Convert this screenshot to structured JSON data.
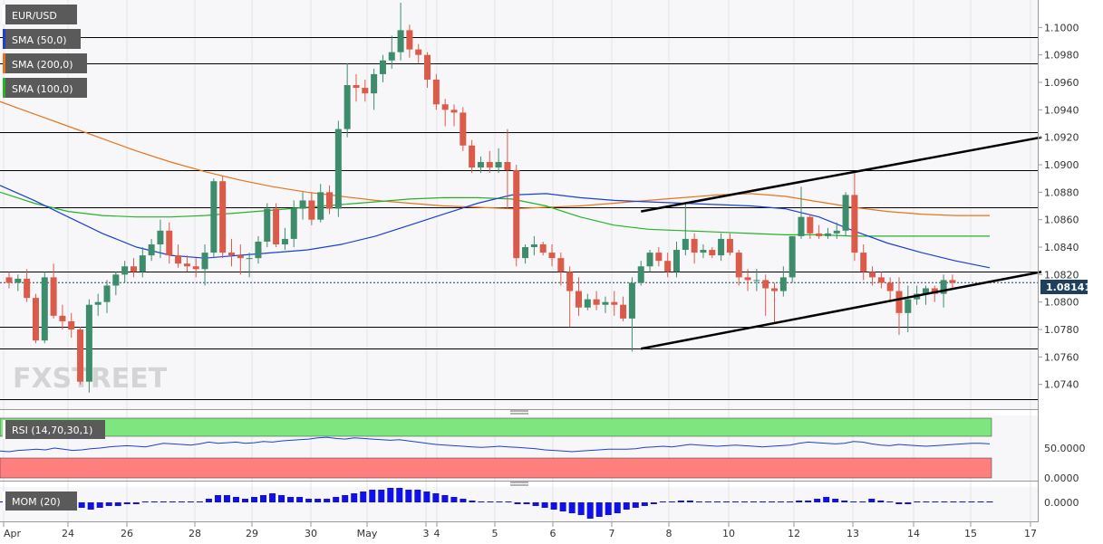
{
  "colors": {
    "up": "#3d8c6b",
    "down": "#dc5a4a",
    "sma50": "#1c3fd6",
    "sma200": "#e8741a",
    "sma100": "#27b327",
    "rsi_upper_band": "#7fe57f",
    "rsi_lower_band": "#ff7f7f",
    "rsi_line": "#1c3fd6",
    "mom_bar": "#1010e8",
    "trendline": "#000000",
    "price_tag_bg": "#1f3f5f"
  },
  "legend": {
    "symbol": "EUR/USD",
    "sma50": "SMA (50,0)",
    "sma200": "SMA (200,0)",
    "sma100": "SMA (100,0)"
  },
  "price_tag": "1.08141",
  "watermark": "FXSTREET",
  "rsi_label": "RSI (14,70,30,1)",
  "mom_label": "MOM (20)",
  "rsi_ticks": [
    "50.0000",
    "0.0000"
  ],
  "mom_ticks": [
    "0.0000"
  ],
  "chart_data": {
    "type": "candlestick",
    "ylim": [
      1.0722,
      1.102
    ],
    "y_ticks": [
      1.1,
      1.098,
      1.096,
      1.094,
      1.092,
      1.09,
      1.088,
      1.086,
      1.084,
      1.082,
      1.08,
      1.078,
      1.076,
      1.074
    ],
    "y_tick_labels": [
      "1.1000",
      "1.0980",
      "1.0960",
      "1.0940",
      "1.0920",
      "1.0900",
      "1.0880",
      "1.0860",
      "1.0840",
      "1.0820",
      "1.0800",
      "1.0780",
      "1.0760",
      "1.0740"
    ],
    "x_tick_labels": [
      "Apr",
      "24",
      "26",
      "28",
      "29",
      "30",
      "May",
      "3",
      "4",
      "5",
      "6",
      "7",
      "8",
      "10",
      "12",
      "13",
      "14",
      "15",
      "17"
    ],
    "horizontal_levels": [
      1.0993,
      1.0974,
      1.0924,
      1.0896,
      1.0869,
      1.0822,
      1.0782,
      1.0766,
      1.0729
    ],
    "last_price": 1.08141,
    "candles": [
      [
        1.0818,
        1.0822,
        1.081,
        1.0814
      ],
      [
        1.0814,
        1.082,
        1.0808,
        1.0817
      ],
      [
        1.0817,
        1.0824,
        1.08,
        1.0803
      ],
      [
        1.0803,
        1.0806,
        1.077,
        1.0772
      ],
      [
        1.0772,
        1.0822,
        1.077,
        1.0818
      ],
      [
        1.0818,
        1.0828,
        1.0788,
        1.079
      ],
      [
        1.079,
        1.0798,
        1.078,
        1.0786
      ],
      [
        1.0786,
        1.0792,
        1.0774,
        1.078
      ],
      [
        1.078,
        1.0782,
        1.074,
        1.0742
      ],
      [
        1.0742,
        1.0802,
        1.0734,
        1.0798
      ],
      [
        1.0798,
        1.0806,
        1.079,
        1.08
      ],
      [
        1.08,
        1.0816,
        1.0792,
        1.0812
      ],
      [
        1.0812,
        1.0822,
        1.0805,
        1.082
      ],
      [
        1.082,
        1.083,
        1.0814,
        1.0826
      ],
      [
        1.0826,
        1.0832,
        1.0818,
        1.0822
      ],
      [
        1.0822,
        1.084,
        1.0818,
        1.0834
      ],
      [
        1.0834,
        1.0846,
        1.083,
        1.0842
      ],
      [
        1.0842,
        1.086,
        1.0832,
        1.0852
      ],
      [
        1.0852,
        1.0858,
        1.0828,
        1.0834
      ],
      [
        1.0834,
        1.0842,
        1.0825,
        1.0828
      ],
      [
        1.0828,
        1.0834,
        1.0822,
        1.0826
      ],
      [
        1.0826,
        1.0832,
        1.0818,
        1.0824
      ],
      [
        1.0824,
        1.0842,
        1.0812,
        1.0836
      ],
      [
        1.0836,
        1.089,
        1.0832,
        1.0888
      ],
      [
        1.0888,
        1.0892,
        1.0832,
        1.0836
      ],
      [
        1.0836,
        1.0846,
        1.0826,
        1.0834
      ],
      [
        1.0834,
        1.0842,
        1.082,
        1.0832
      ],
      [
        1.0832,
        1.0836,
        1.0818,
        1.0832
      ],
      [
        1.0832,
        1.0848,
        1.0828,
        1.0844
      ],
      [
        1.0844,
        1.0872,
        1.084,
        1.0868
      ],
      [
        1.0868,
        1.0872,
        1.084,
        1.0842
      ],
      [
        1.0842,
        1.0854,
        1.0838,
        1.0846
      ],
      [
        1.0846,
        1.0874,
        1.084,
        1.0868
      ],
      [
        1.0868,
        1.088,
        1.086,
        1.0874
      ],
      [
        1.0874,
        1.088,
        1.0856,
        1.086
      ],
      [
        1.086,
        1.0886,
        1.0858,
        1.088
      ],
      [
        1.088,
        1.0885,
        1.0864,
        1.0868
      ],
      [
        1.0868,
        1.0932,
        1.0862,
        1.0926
      ],
      [
        1.0926,
        1.0974,
        1.092,
        1.0958
      ],
      [
        1.0958,
        1.0966,
        1.0946,
        1.0956
      ],
      [
        1.0956,
        1.0962,
        1.0946,
        1.0952
      ],
      [
        1.0952,
        1.097,
        1.094,
        1.0966
      ],
      [
        1.0966,
        1.098,
        1.096,
        1.0976
      ],
      [
        1.0976,
        1.0994,
        1.097,
        1.0982
      ],
      [
        1.0982,
        1.1018,
        1.0976,
        1.0998
      ],
      [
        1.0998,
        1.1002,
        1.0978,
        1.0984
      ],
      [
        1.0984,
        1.0988,
        1.0974,
        1.098
      ],
      [
        1.098,
        1.0982,
        1.0956,
        1.0962
      ],
      [
        1.0962,
        1.0966,
        1.094,
        1.0944
      ],
      [
        1.0944,
        1.0948,
        1.0928,
        1.094
      ],
      [
        1.094,
        1.0944,
        1.0928,
        1.0938
      ],
      [
        1.0938,
        1.0942,
        1.091,
        1.0914
      ],
      [
        1.0914,
        1.0918,
        1.0894,
        1.0898
      ],
      [
        1.0898,
        1.0906,
        1.0894,
        1.0902
      ],
      [
        1.0902,
        1.091,
        1.0894,
        1.0898
      ],
      [
        1.0898,
        1.0912,
        1.0894,
        1.0902
      ],
      [
        1.0902,
        1.0926,
        1.0868,
        1.0896
      ],
      [
        1.0896,
        1.09,
        1.0826,
        1.0832
      ],
      [
        1.0832,
        1.0842,
        1.0828,
        1.084
      ],
      [
        1.084,
        1.0848,
        1.0834,
        1.0842
      ],
      [
        1.0842,
        1.0844,
        1.0834,
        1.0836
      ],
      [
        1.0836,
        1.0842,
        1.0826,
        1.0832
      ],
      [
        1.0832,
        1.0836,
        1.0812,
        1.0822
      ],
      [
        1.0822,
        1.0826,
        1.0782,
        1.0808
      ],
      [
        1.0808,
        1.0818,
        1.079,
        1.0796
      ],
      [
        1.0796,
        1.0806,
        1.0794,
        1.0802
      ],
      [
        1.0802,
        1.0808,
        1.0794,
        1.0798
      ],
      [
        1.0798,
        1.0804,
        1.0792,
        1.08
      ],
      [
        1.08,
        1.0808,
        1.079,
        1.0798
      ],
      [
        1.0798,
        1.0804,
        1.0786,
        1.0788
      ],
      [
        1.0788,
        1.0818,
        1.0764,
        1.0814
      ],
      [
        1.0814,
        1.083,
        1.0812,
        1.0826
      ],
      [
        1.0826,
        1.0838,
        1.0822,
        1.0836
      ],
      [
        1.0836,
        1.084,
        1.0826,
        1.083
      ],
      [
        1.083,
        1.0836,
        1.0818,
        1.0822
      ],
      [
        1.0822,
        1.0844,
        1.0818,
        1.0838
      ],
      [
        1.0838,
        1.0872,
        1.0834,
        1.0846
      ],
      [
        1.0846,
        1.085,
        1.0828,
        1.0836
      ],
      [
        1.0836,
        1.0842,
        1.0832,
        1.0838
      ],
      [
        1.0838,
        1.084,
        1.0832,
        1.0834
      ],
      [
        1.0834,
        1.085,
        1.083,
        1.0846
      ],
      [
        1.0846,
        1.085,
        1.0834,
        1.0836
      ],
      [
        1.0836,
        1.0838,
        1.0812,
        1.0818
      ],
      [
        1.0818,
        1.0824,
        1.0808,
        1.0816
      ],
      [
        1.0816,
        1.0824,
        1.0808,
        1.0816
      ],
      [
        1.0816,
        1.082,
        1.079,
        1.081
      ],
      [
        1.081,
        1.0814,
        1.0784,
        1.0808
      ],
      [
        1.0808,
        1.0826,
        1.0804,
        1.0818
      ],
      [
        1.0818,
        1.0848,
        1.0814,
        1.0848
      ],
      [
        1.0848,
        1.0884,
        1.0846,
        1.0862
      ],
      [
        1.0862,
        1.0864,
        1.0846,
        1.085
      ],
      [
        1.085,
        1.0856,
        1.0846,
        1.0848
      ],
      [
        1.0848,
        1.0854,
        1.0846,
        1.085
      ],
      [
        1.085,
        1.0858,
        1.0846,
        1.0852
      ],
      [
        1.0852,
        1.088,
        1.0848,
        1.0878
      ],
      [
        1.0878,
        1.0894,
        1.083,
        1.0836
      ],
      [
        1.0836,
        1.0842,
        1.0816,
        1.0822
      ],
      [
        1.0822,
        1.0826,
        1.0812,
        1.0818
      ],
      [
        1.0818,
        1.0822,
        1.081,
        1.0814
      ],
      [
        1.0814,
        1.0818,
        1.08,
        1.0808
      ],
      [
        1.0808,
        1.0818,
        1.0776,
        1.0792
      ],
      [
        1.0792,
        1.0812,
        1.0778,
        1.0802
      ],
      [
        1.0802,
        1.0812,
        1.0798,
        1.0806
      ],
      [
        1.0806,
        1.0812,
        1.0798,
        1.081
      ],
      [
        1.081,
        1.0812,
        1.08,
        1.0806
      ],
      [
        1.0806,
        1.082,
        1.0796,
        1.0816
      ],
      [
        1.0816,
        1.082,
        1.081,
        1.0814
      ]
    ],
    "sma200": [
      1.0946,
      1.0937,
      1.0928,
      1.0919,
      1.091,
      1.0902,
      1.0895,
      1.0889,
      1.0884,
      1.088,
      1.0877,
      1.0874,
      1.0872,
      1.087,
      1.0869,
      1.0868,
      1.0869,
      1.087,
      1.0872,
      1.0874,
      1.0876,
      1.0878,
      1.0879,
      1.0877,
      1.0873,
      1.0869,
      1.0866,
      1.0864,
      1.0863,
      1.0863
    ],
    "sma50": [
      1.0885,
      1.0874,
      1.0862,
      1.085,
      1.084,
      1.0834,
      1.0832,
      1.0834,
      1.0836,
      1.0838,
      1.0842,
      1.0848,
      1.0856,
      1.0864,
      1.0872,
      1.0878,
      1.0879,
      1.0876,
      1.0874,
      1.0873,
      1.0872,
      1.0871,
      1.087,
      1.0868,
      1.0862,
      1.0852,
      1.0843,
      1.0836,
      1.083,
      1.0825
    ],
    "sma100": [
      1.088,
      1.0872,
      1.0866,
      1.0863,
      1.0862,
      1.0862,
      1.0863,
      1.0865,
      1.0867,
      1.0869,
      1.0871,
      1.0873,
      1.0875,
      1.0876,
      1.0876,
      1.0875,
      1.087,
      1.0862,
      1.0856,
      1.0853,
      1.0852,
      1.0851,
      1.085,
      1.0849,
      1.0849,
      1.0848,
      1.0848,
      1.0848,
      1.0848,
      1.0848
    ],
    "trendlines": [
      {
        "from": [
          71,
          1.0866
        ],
        "to": [
          116,
          1.092
        ]
      },
      {
        "from": [
          71,
          1.0766
        ],
        "to": [
          116,
          1.0822
        ]
      }
    ],
    "rsi": {
      "ylim": [
        0,
        100
      ],
      "values": [
        45,
        44,
        46,
        47,
        48,
        47,
        50,
        48,
        46,
        47,
        49,
        50,
        52,
        53,
        54,
        53,
        52,
        55,
        58,
        57,
        56,
        55,
        57,
        60,
        58,
        59,
        60,
        58,
        59,
        61,
        60,
        62,
        63,
        64,
        65,
        67,
        68,
        66,
        65,
        67,
        66,
        65,
        64,
        63,
        64,
        62,
        60,
        58,
        56,
        55,
        54,
        53,
        52,
        51,
        52,
        53,
        52,
        51,
        50,
        49,
        47,
        46,
        45,
        44,
        45,
        46,
        47,
        48,
        48,
        48,
        49,
        51,
        52,
        53,
        52,
        54,
        56,
        55,
        54,
        53,
        54,
        55,
        54,
        53,
        52,
        53,
        54,
        55,
        58,
        60,
        59,
        58,
        57,
        58,
        61,
        60,
        57,
        55,
        54,
        56,
        55,
        54,
        53,
        54,
        55,
        56,
        57,
        58,
        58,
        57
      ]
    },
    "momentum": {
      "values": [
        0.0,
        0.0,
        0.0,
        -0.0001,
        -0.0001,
        -0.0002,
        -0.0002,
        -0.0003,
        -0.0004,
        -0.0003,
        -0.0004,
        -0.0003,
        -0.0002,
        -0.0002,
        -0.0001,
        -0.0001,
        0.0,
        0.0,
        0.0,
        0.0,
        0.0,
        0.0,
        0.0,
        0.0002,
        0.0004,
        0.0004,
        0.0003,
        0.0002,
        0.0003,
        0.0004,
        0.0005,
        0.0004,
        0.0003,
        0.0003,
        0.0002,
        0.0002,
        0.0002,
        0.0003,
        0.0004,
        0.0005,
        0.0006,
        0.0007,
        0.0007,
        0.0008,
        0.0008,
        0.0007,
        0.0007,
        0.0006,
        0.0005,
        0.0004,
        0.0003,
        0.0002,
        0.0001,
        0.0,
        0.0,
        0.0,
        0.0,
        -0.0001,
        -0.0001,
        -0.0002,
        -0.0003,
        -0.0004,
        -0.0005,
        -0.0006,
        -0.0007,
        -0.0009,
        -0.0008,
        -0.0007,
        -0.0006,
        -0.0004,
        -0.0003,
        -0.0002,
        -0.0001,
        0.0,
        0.0,
        0.0001,
        0.0001,
        0.0,
        0.0,
        0.0,
        0.0,
        0.0,
        0.0,
        0.0,
        0.0,
        0.0,
        0.0,
        0.0,
        0.0001,
        0.0001,
        0.0002,
        0.0003,
        0.0002,
        0.0001,
        0.0,
        0.0,
        0.0002,
        0.0001,
        0.0,
        -0.0001,
        -0.0001,
        0.0,
        0.0,
        0.0,
        0.0,
        0.0,
        0.0,
        0.0,
        0.0,
        0.0
      ]
    }
  }
}
